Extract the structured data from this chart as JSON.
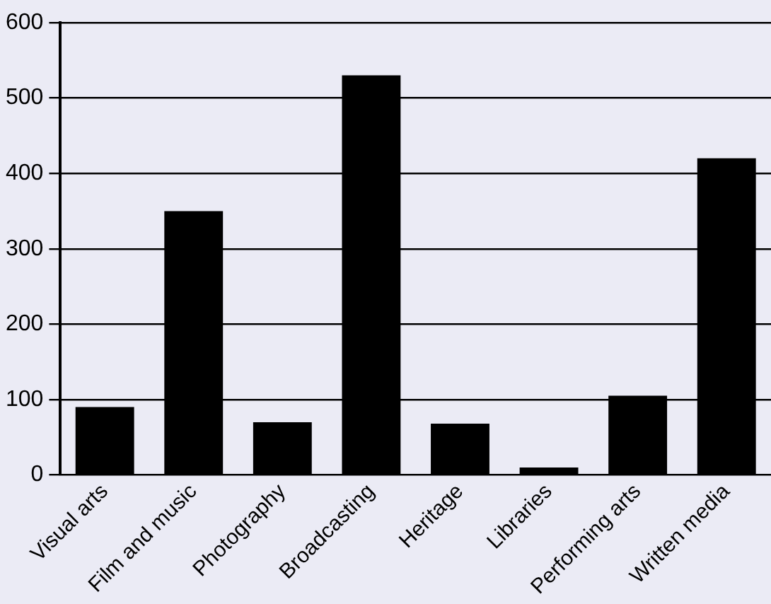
{
  "chart_data": {
    "type": "bar",
    "categories": [
      "Visual arts",
      "Film and music",
      "Photography",
      "Broadcasting",
      "Heritage",
      "Libraries",
      "Performing arts",
      "Written media"
    ],
    "values": [
      90,
      350,
      70,
      530,
      68,
      10,
      105,
      420
    ],
    "color": "#000000",
    "ylim": [
      0,
      600
    ],
    "yticks": [
      0,
      100,
      200,
      300,
      400,
      500,
      600
    ],
    "grid": "y"
  }
}
